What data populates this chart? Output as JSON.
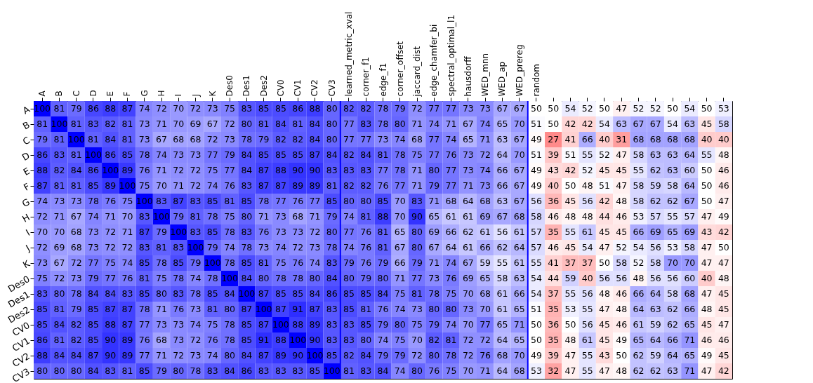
{
  "chart_data": {
    "type": "heatmap",
    "categories": [
      "A",
      "B",
      "C",
      "D",
      "E",
      "F",
      "G",
      "H",
      "I",
      "J",
      "K",
      "Des0",
      "Des1",
      "Des2",
      "CV0",
      "CV1",
      "CV2",
      "CV3",
      "learned_metric_xval",
      "corner_f1",
      "edge_f1",
      "corner_offset",
      "jaccard_dist",
      "edge_chamfer_bi",
      "spectral_optimal_l1",
      "hausdorff",
      "WED_mnn",
      "WED_ap",
      "WED_prereg",
      "random",
      null,
      null,
      null,
      null,
      null,
      null,
      null,
      null,
      null,
      null,
      null
    ],
    "y_categories": [
      "A",
      "B",
      "C",
      "D",
      "E",
      "F",
      "G",
      "H",
      "I",
      "J",
      "K",
      "Des0",
      "Des1",
      "Des2",
      "CV0",
      "CV1",
      "CV2",
      "CV3"
    ],
    "cells": [
      [
        100,
        81,
        79,
        86,
        88,
        87,
        74,
        72,
        70,
        72,
        73,
        75,
        83,
        85,
        85,
        86,
        88,
        80,
        82,
        82,
        78,
        79,
        72,
        77,
        77,
        73,
        73,
        67,
        67,
        50,
        50,
        54,
        52,
        50,
        47,
        52,
        52,
        50,
        54,
        50,
        53
      ],
      [
        81,
        100,
        81,
        83,
        82,
        81,
        73,
        71,
        70,
        69,
        67,
        72,
        80,
        81,
        84,
        81,
        84,
        80,
        77,
        83,
        78,
        80,
        71,
        74,
        71,
        67,
        74,
        65,
        70,
        51,
        50,
        42,
        42,
        54,
        63,
        67,
        67,
        54,
        63,
        45,
        58
      ],
      [
        79,
        81,
        100,
        81,
        84,
        81,
        73,
        67,
        68,
        68,
        72,
        73,
        78,
        79,
        82,
        82,
        84,
        80,
        77,
        77,
        73,
        74,
        68,
        77,
        74,
        65,
        71,
        63,
        67,
        49,
        27,
        41,
        66,
        40,
        31,
        68,
        68,
        68,
        68,
        40,
        40
      ],
      [
        86,
        83,
        81,
        100,
        86,
        85,
        78,
        74,
        73,
        73,
        77,
        79,
        84,
        85,
        85,
        85,
        87,
        84,
        82,
        84,
        81,
        78,
        75,
        77,
        76,
        73,
        72,
        64,
        70,
        51,
        39,
        51,
        55,
        52,
        47,
        58,
        63,
        63,
        64,
        55,
        48
      ],
      [
        88,
        82,
        84,
        86,
        100,
        89,
        76,
        71,
        72,
        72,
        75,
        77,
        84,
        87,
        88,
        90,
        90,
        83,
        83,
        83,
        77,
        78,
        71,
        80,
        77,
        73,
        74,
        66,
        67,
        49,
        43,
        42,
        52,
        45,
        45,
        55,
        62,
        63,
        60,
        50,
        46
      ],
      [
        87,
        81,
        81,
        85,
        89,
        100,
        75,
        70,
        71,
        72,
        74,
        76,
        83,
        87,
        87,
        89,
        89,
        81,
        82,
        82,
        76,
        77,
        71,
        79,
        77,
        71,
        73,
        66,
        67,
        49,
        40,
        50,
        48,
        51,
        47,
        58,
        59,
        58,
        64,
        50,
        46
      ],
      [
        74,
        73,
        73,
        78,
        76,
        75,
        100,
        83,
        87,
        83,
        85,
        81,
        85,
        78,
        77,
        76,
        77,
        85,
        80,
        80,
        85,
        70,
        83,
        71,
        68,
        64,
        68,
        63,
        67,
        56,
        36,
        45,
        56,
        42,
        48,
        58,
        62,
        62,
        67,
        50,
        47
      ],
      [
        72,
        71,
        67,
        74,
        71,
        70,
        83,
        100,
        79,
        81,
        78,
        75,
        80,
        71,
        73,
        68,
        71,
        79,
        74,
        81,
        88,
        70,
        90,
        65,
        61,
        61,
        69,
        67,
        68,
        58,
        46,
        48,
        48,
        44,
        46,
        53,
        57,
        55,
        57,
        47,
        49
      ],
      [
        70,
        70,
        68,
        73,
        72,
        71,
        87,
        79,
        100,
        83,
        85,
        78,
        83,
        76,
        73,
        73,
        72,
        80,
        77,
        76,
        81,
        65,
        80,
        69,
        66,
        62,
        61,
        56,
        61,
        57,
        35,
        55,
        61,
        45,
        45,
        66,
        69,
        65,
        69,
        43,
        42
      ],
      [
        72,
        69,
        68,
        73,
        72,
        72,
        83,
        81,
        83,
        100,
        79,
        74,
        78,
        73,
        74,
        72,
        73,
        78,
        74,
        76,
        81,
        67,
        80,
        67,
        64,
        61,
        66,
        62,
        64,
        57,
        46,
        45,
        54,
        47,
        52,
        54,
        56,
        53,
        58,
        47,
        50
      ],
      [
        73,
        67,
        72,
        77,
        75,
        74,
        85,
        78,
        85,
        79,
        100,
        78,
        85,
        81,
        75,
        76,
        74,
        83,
        79,
        76,
        79,
        66,
        79,
        71,
        74,
        67,
        59,
        55,
        61,
        55,
        41,
        37,
        37,
        50,
        58,
        52,
        58,
        70,
        70,
        47,
        47
      ],
      [
        75,
        72,
        73,
        79,
        77,
        76,
        81,
        75,
        78,
        74,
        78,
        100,
        84,
        80,
        78,
        78,
        80,
        84,
        80,
        79,
        80,
        71,
        77,
        73,
        76,
        69,
        65,
        58,
        63,
        54,
        44,
        59,
        40,
        56,
        56,
        48,
        56,
        56,
        60,
        40,
        48
      ],
      [
        83,
        80,
        78,
        84,
        84,
        83,
        85,
        80,
        83,
        78,
        85,
        84,
        100,
        87,
        85,
        85,
        84,
        86,
        85,
        85,
        84,
        75,
        81,
        78,
        75,
        70,
        68,
        61,
        66,
        54,
        37,
        55,
        56,
        48,
        46,
        66,
        64,
        58,
        68,
        47,
        45
      ],
      [
        85,
        81,
        79,
        85,
        87,
        87,
        78,
        71,
        76,
        73,
        81,
        80,
        87,
        100,
        87,
        91,
        87,
        83,
        85,
        81,
        76,
        74,
        73,
        80,
        80,
        73,
        70,
        61,
        65,
        51,
        35,
        53,
        55,
        47,
        48,
        64,
        63,
        62,
        66,
        48,
        45
      ],
      [
        85,
        84,
        82,
        85,
        88,
        87,
        77,
        73,
        73,
        74,
        75,
        78,
        85,
        87,
        100,
        88,
        89,
        83,
        83,
        85,
        79,
        80,
        75,
        79,
        74,
        70,
        77,
        65,
        71,
        50,
        36,
        50,
        56,
        45,
        46,
        61,
        59,
        62,
        65,
        45,
        47
      ],
      [
        86,
        81,
        82,
        85,
        90,
        89,
        76,
        68,
        73,
        72,
        76,
        78,
        85,
        91,
        88,
        100,
        90,
        83,
        83,
        80,
        74,
        75,
        70,
        82,
        81,
        72,
        72,
        64,
        65,
        50,
        35,
        48,
        61,
        45,
        49,
        65,
        64,
        66,
        71,
        46,
        46
      ],
      [
        88,
        84,
        84,
        87,
        90,
        89,
        77,
        71,
        72,
        73,
        74,
        80,
        84,
        87,
        89,
        90,
        100,
        85,
        82,
        84,
        79,
        79,
        72,
        80,
        78,
        72,
        76,
        68,
        70,
        49,
        39,
        47,
        55,
        43,
        50,
        62,
        59,
        64,
        65,
        49,
        45
      ],
      [
        80,
        80,
        80,
        84,
        83,
        81,
        85,
        79,
        80,
        78,
        83,
        84,
        86,
        83,
        83,
        83,
        85,
        100,
        81,
        83,
        84,
        74,
        80,
        76,
        75,
        70,
        71,
        64,
        68,
        53,
        32,
        47,
        55,
        47,
        48,
        62,
        62,
        63,
        71,
        47,
        42
      ]
    ],
    "data_labels": true,
    "grid": false
  }
}
